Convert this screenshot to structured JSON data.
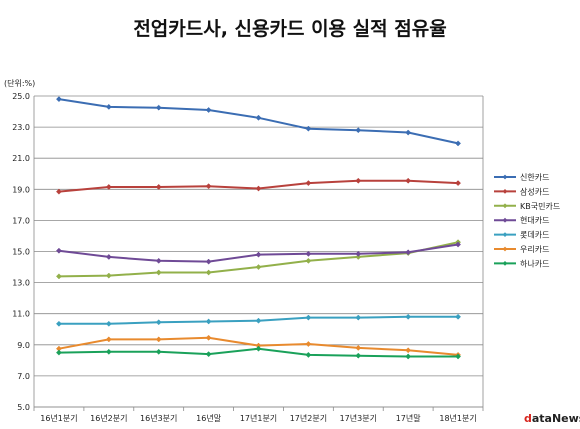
{
  "chart_data": {
    "type": "line",
    "title": "전업카드사, 신용카드 이용 실적 점유율",
    "unit_label": "(단위:%)",
    "ylim": [
      5.0,
      25.0
    ],
    "y_ticks": [
      "5.0",
      "7.0",
      "9.0",
      "11.0",
      "13.0",
      "15.0",
      "17.0",
      "19.0",
      "21.0",
      "23.0",
      "25.0"
    ],
    "grid": "horizontal",
    "legend_position": "right",
    "categories": [
      "16년1분기",
      "16년2분기",
      "16년3분기",
      "16년말",
      "17년1분기",
      "17년2분기",
      "17년3분기",
      "17년말",
      "18년1분기"
    ],
    "series": [
      {
        "name": "신한카드",
        "color": "#3b6db3",
        "values": [
          24.8,
          24.3,
          24.25,
          24.1,
          23.6,
          22.9,
          22.8,
          22.65,
          21.95
        ]
      },
      {
        "name": "삼성카드",
        "color": "#b8413c",
        "values": [
          18.85,
          19.15,
          19.15,
          19.2,
          19.05,
          19.4,
          19.55,
          19.55,
          19.4
        ]
      },
      {
        "name": "KB국민카드",
        "color": "#92b04a",
        "values": [
          13.4,
          13.45,
          13.65,
          13.65,
          14.0,
          14.4,
          14.65,
          14.9,
          15.6
        ]
      },
      {
        "name": "현대카드",
        "color": "#6f4a96",
        "values": [
          15.05,
          14.65,
          14.4,
          14.35,
          14.8,
          14.85,
          14.85,
          14.95,
          15.45
        ]
      },
      {
        "name": "롯데카드",
        "color": "#3aa0c0",
        "values": [
          10.35,
          10.35,
          10.45,
          10.5,
          10.55,
          10.75,
          10.75,
          10.8,
          10.8
        ]
      },
      {
        "name": "우리카드",
        "color": "#e88a2e",
        "values": [
          8.75,
          9.35,
          9.35,
          9.45,
          8.95,
          9.05,
          8.8,
          8.65,
          8.35
        ]
      },
      {
        "name": "하나카드",
        "color": "#1aa15a",
        "values": [
          8.5,
          8.55,
          8.55,
          8.4,
          8.75,
          8.35,
          8.3,
          8.25,
          8.25
        ]
      }
    ]
  },
  "logo": {
    "d": "d",
    "rest": "ataNews"
  }
}
